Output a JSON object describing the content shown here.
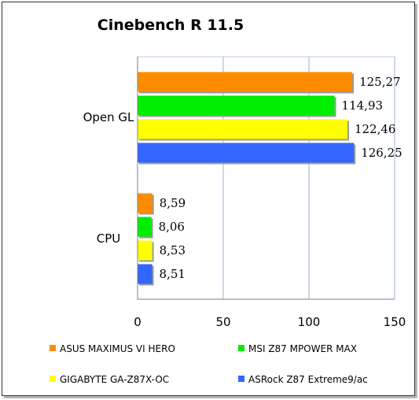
{
  "chart_data": {
    "type": "bar",
    "orientation": "horizontal",
    "title": "Cinebench R 11.5",
    "xlabel": "",
    "ylabel": "",
    "categories": [
      "Open GL",
      "CPU"
    ],
    "xlim": [
      0,
      150
    ],
    "xticks": [
      0,
      50,
      100,
      150
    ],
    "grid": true,
    "legend_position": "bottom",
    "series": [
      {
        "name": "ASUS MAXIMUS VI HERO",
        "color": "#ff8c00",
        "values": [
          125.27,
          8.59
        ],
        "labels": [
          "125,27",
          "8,59"
        ]
      },
      {
        "name": "MSI Z87 MPOWER MAX",
        "color": "#00ee00",
        "values": [
          114.93,
          8.06
        ],
        "labels": [
          "114,93",
          "8,06"
        ]
      },
      {
        "name": "GIGABYTE GA-Z87X-OC",
        "color": "#ffff00",
        "values": [
          122.46,
          8.53
        ],
        "labels": [
          "122,46",
          "8,53"
        ]
      },
      {
        "name": "ASRock Z87 Extreme9/ac",
        "color": "#3366ff",
        "values": [
          126.25,
          8.51
        ],
        "labels": [
          "126,25",
          "8,51"
        ]
      }
    ]
  }
}
